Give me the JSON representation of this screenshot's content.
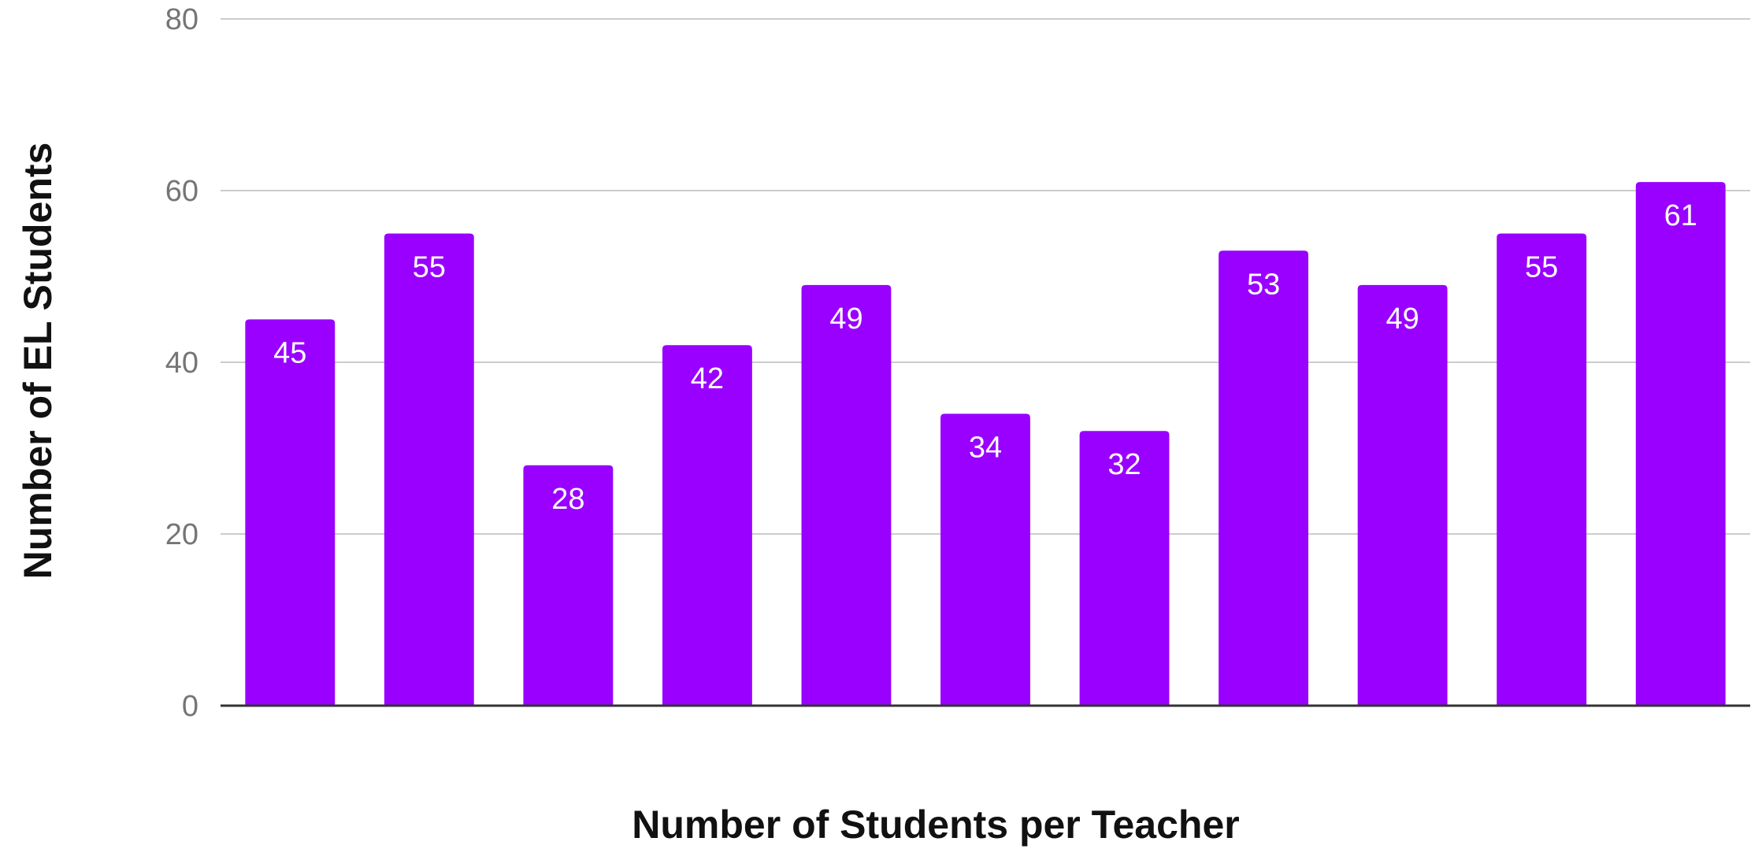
{
  "chart_data": {
    "type": "bar",
    "title": "",
    "xlabel": "Number of Students per Teacher",
    "ylabel": "Number of EL Students",
    "values": [
      45,
      55,
      28,
      42,
      49,
      34,
      32,
      53,
      49,
      55,
      61
    ],
    "ylim": [
      0,
      80
    ],
    "yticks": [
      0,
      20,
      40,
      60,
      80
    ],
    "grid": true,
    "legend": "none",
    "bar_color": "#9900ff",
    "gridline_color": "#cccccc",
    "baseline_color": "#333333"
  }
}
